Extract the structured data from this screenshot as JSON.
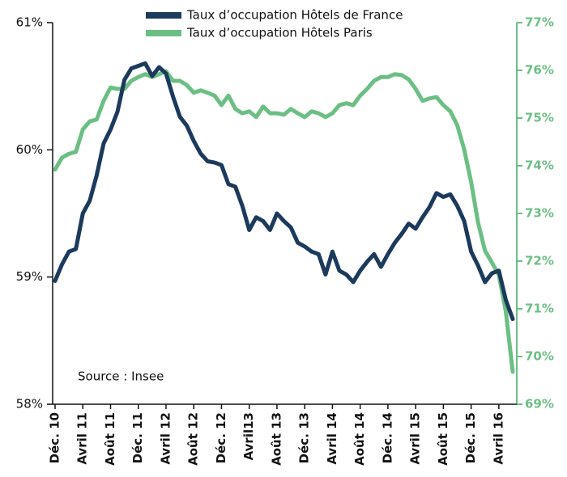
{
  "chart_data": {
    "type": "line",
    "annotation": "Source : Insee",
    "categories": [
      "Déc. 10",
      null,
      null,
      null,
      "Avril 11",
      null,
      null,
      null,
      "Août 11",
      null,
      null,
      null,
      "Déc. 11",
      null,
      null,
      null,
      "Avril 12",
      null,
      null,
      null,
      "Août 12",
      null,
      null,
      null,
      "Déc. 12",
      null,
      null,
      null,
      "Avril13",
      null,
      null,
      null,
      "Août 13",
      null,
      null,
      null,
      "Déc. 13",
      null,
      null,
      null,
      "Avril 14",
      null,
      null,
      null,
      "Août 14",
      null,
      null,
      null,
      "Déc. 14",
      null,
      null,
      null,
      "Avril 15",
      null,
      null,
      null,
      "Août 15",
      null,
      null,
      null,
      "Déc. 15",
      null,
      null,
      null,
      "Avril 16",
      null,
      null
    ],
    "series": [
      {
        "name": "Taux d’occupation Hôtels de France",
        "color": "#1b3a5c",
        "axis": "y",
        "values": [
          58.97,
          59.1,
          59.2,
          59.22,
          59.5,
          59.6,
          59.8,
          60.05,
          60.16,
          60.3,
          60.55,
          60.64,
          60.66,
          60.68,
          60.58,
          60.65,
          60.6,
          60.42,
          60.26,
          60.19,
          60.07,
          59.97,
          59.91,
          59.9,
          59.88,
          59.73,
          59.71,
          59.56,
          59.37,
          59.47,
          59.44,
          59.37,
          59.5,
          59.44,
          59.39,
          59.27,
          59.24,
          59.2,
          59.18,
          59.02,
          59.2,
          59.05,
          59.02,
          58.96,
          59.05,
          59.12,
          59.18,
          59.08,
          59.18,
          59.27,
          59.34,
          59.42,
          59.38,
          59.47,
          59.55,
          59.66,
          59.63,
          59.65,
          59.56,
          59.44,
          59.2,
          59.09,
          58.96,
          59.03,
          59.05,
          58.82,
          58.67
        ]
      },
      {
        "name": "Taux d’occupation Hôtels Paris",
        "color": "#6cbf84",
        "axis": "y2",
        "values": [
          73.92,
          74.17,
          74.25,
          74.29,
          74.76,
          74.93,
          74.97,
          75.36,
          75.64,
          75.61,
          75.61,
          75.78,
          75.86,
          75.92,
          75.86,
          75.92,
          75.98,
          75.78,
          75.78,
          75.69,
          75.53,
          75.58,
          75.53,
          75.47,
          75.27,
          75.47,
          75.19,
          75.1,
          75.14,
          75.02,
          75.24,
          75.1,
          75.1,
          75.07,
          75.19,
          75.1,
          75.02,
          75.14,
          75.1,
          75.02,
          75.1,
          75.27,
          75.31,
          75.27,
          75.47,
          75.61,
          75.78,
          75.86,
          75.86,
          75.92,
          75.9,
          75.81,
          75.61,
          75.36,
          75.41,
          75.44,
          75.27,
          75.14,
          74.85,
          74.34,
          73.66,
          72.81,
          72.22,
          71.97,
          71.71,
          70.95,
          69.68
        ]
      }
    ],
    "ylim": [
      58,
      61
    ],
    "yticks": [
      {
        "value": 58,
        "label": "58%"
      },
      {
        "value": 59,
        "label": "59%"
      },
      {
        "value": 60,
        "label": "60%"
      },
      {
        "value": 61,
        "label": "61%"
      }
    ],
    "y2lim": [
      69,
      77
    ],
    "y2ticks": [
      {
        "value": 69,
        "label": "69%"
      },
      {
        "value": 70,
        "label": "70%"
      },
      {
        "value": 71,
        "label": "71%"
      },
      {
        "value": 72,
        "label": "72%"
      },
      {
        "value": 73,
        "label": "73%"
      },
      {
        "value": 74,
        "label": "74%"
      },
      {
        "value": 75,
        "label": "75%"
      },
      {
        "value": 76,
        "label": "76%"
      },
      {
        "value": 77,
        "label": "77%"
      }
    ],
    "y2color": "#6cbf84"
  }
}
